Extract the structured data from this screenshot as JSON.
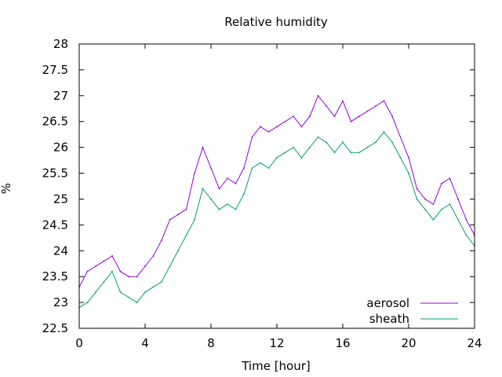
{
  "chart_data": {
    "type": "line",
    "title": "Relative humidity",
    "xlabel": "Time [hour]",
    "ylabel": "%",
    "xlim": [
      0,
      24
    ],
    "ylim": [
      22.5,
      28
    ],
    "xticks": [
      0,
      4,
      8,
      12,
      16,
      20,
      24
    ],
    "yticks": [
      22.5,
      23,
      23.5,
      24,
      24.5,
      25,
      25.5,
      26,
      26.5,
      27,
      27.5,
      28
    ],
    "xtick_labels": [
      "0",
      "4",
      "8",
      "12",
      "16",
      "20",
      "24"
    ],
    "ytick_labels": [
      "22.5",
      "23",
      "23.5",
      "24",
      "24.5",
      "25",
      "25.5",
      "26",
      "26.5",
      "27",
      "27.5",
      "28"
    ],
    "grid": false,
    "legend": "bottom-right",
    "series": [
      {
        "name": "aerosol",
        "color": "#9400d3",
        "x": [
          0,
          0.5,
          1,
          1.5,
          2,
          2.5,
          3,
          3.5,
          4,
          4.5,
          5,
          5.5,
          6,
          6.5,
          7,
          7.5,
          8,
          8.5,
          9,
          9.5,
          10,
          10.5,
          11,
          11.5,
          12,
          12.5,
          13,
          13.5,
          14,
          14.5,
          15,
          15.5,
          16,
          16.5,
          17,
          17.5,
          18,
          18.5,
          19,
          19.5,
          20,
          20.5,
          21,
          21.5,
          22,
          22.5,
          23,
          23.5,
          24
        ],
        "y": [
          23.3,
          23.6,
          23.7,
          23.8,
          23.9,
          23.6,
          23.5,
          23.5,
          23.7,
          23.9,
          24.2,
          24.6,
          24.7,
          24.8,
          25.5,
          26.0,
          25.6,
          25.2,
          25.4,
          25.3,
          25.6,
          26.2,
          26.4,
          26.3,
          26.4,
          26.5,
          26.6,
          26.4,
          26.6,
          27.0,
          26.8,
          26.6,
          26.9,
          26.5,
          26.6,
          26.7,
          26.8,
          26.9,
          26.6,
          26.2,
          25.8,
          25.2,
          25.0,
          24.9,
          25.3,
          25.4,
          25.0,
          24.6,
          24.3
        ]
      },
      {
        "name": "sheath",
        "color": "#009e73",
        "x": [
          0,
          0.5,
          1,
          1.5,
          2,
          2.5,
          3,
          3.5,
          4,
          4.5,
          5,
          5.5,
          6,
          6.5,
          7,
          7.5,
          8,
          8.5,
          9,
          9.5,
          10,
          10.5,
          11,
          11.5,
          12,
          12.5,
          13,
          13.5,
          14,
          14.5,
          15,
          15.5,
          16,
          16.5,
          17,
          17.5,
          18,
          18.5,
          19,
          19.5,
          20,
          20.5,
          21,
          21.5,
          22,
          22.5,
          23,
          23.5,
          24
        ],
        "y": [
          22.9,
          23.0,
          23.2,
          23.4,
          23.6,
          23.2,
          23.1,
          23.0,
          23.2,
          23.3,
          23.4,
          23.7,
          24.0,
          24.3,
          24.6,
          25.2,
          25.0,
          24.8,
          24.9,
          24.8,
          25.1,
          25.6,
          25.7,
          25.6,
          25.8,
          25.9,
          26.0,
          25.8,
          26.0,
          26.2,
          26.1,
          25.9,
          26.1,
          25.9,
          25.9,
          26.0,
          26.1,
          26.3,
          26.1,
          25.8,
          25.5,
          25.0,
          24.8,
          24.6,
          24.8,
          24.9,
          24.6,
          24.3,
          24.1
        ]
      }
    ]
  }
}
